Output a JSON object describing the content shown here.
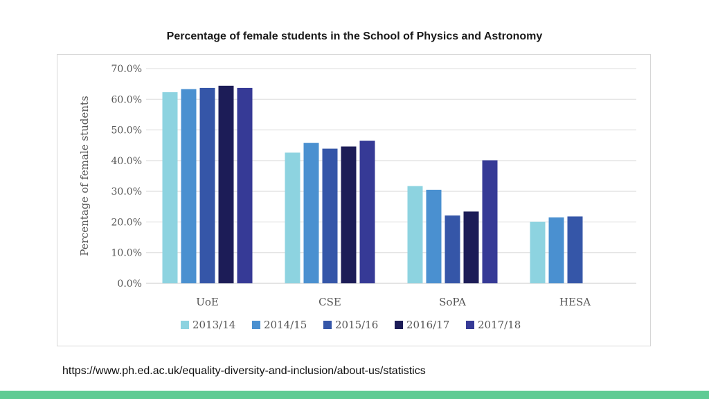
{
  "slide": {
    "title": "Percentage of female students in the School of Physics and Astronomy",
    "source_url": "https://www.ph.ed.ac.uk/equality-diversity-and-inclusion/about-us/statistics",
    "accent_bar_color": "#5fcb94"
  },
  "chart_data": {
    "type": "bar",
    "title": "",
    "xlabel": "",
    "ylabel": "Percentage of female students",
    "ylim": [
      0,
      70
    ],
    "yticks": [
      "0.0%",
      "10.0%",
      "20.0%",
      "30.0%",
      "40.0%",
      "50.0%",
      "60.0%",
      "70.0%"
    ],
    "grid": true,
    "legend_position": "bottom",
    "categories": [
      "UoE",
      "CSE",
      "SoPA",
      "HESA"
    ],
    "series": [
      {
        "name": "2013/14",
        "color": "#8dd3e0",
        "values": [
          62.3,
          42.6,
          31.7,
          20.1
        ]
      },
      {
        "name": "2014/15",
        "color": "#4a90d0",
        "values": [
          63.3,
          45.8,
          30.5,
          21.5
        ]
      },
      {
        "name": "2015/16",
        "color": "#3556a8",
        "values": [
          63.7,
          43.9,
          22.1,
          21.8
        ]
      },
      {
        "name": "2016/17",
        "color": "#1c1c57",
        "values": [
          64.4,
          44.6,
          23.4,
          null
        ]
      },
      {
        "name": "2017/18",
        "color": "#363a96",
        "values": [
          63.7,
          46.5,
          40.1,
          null
        ]
      }
    ]
  }
}
